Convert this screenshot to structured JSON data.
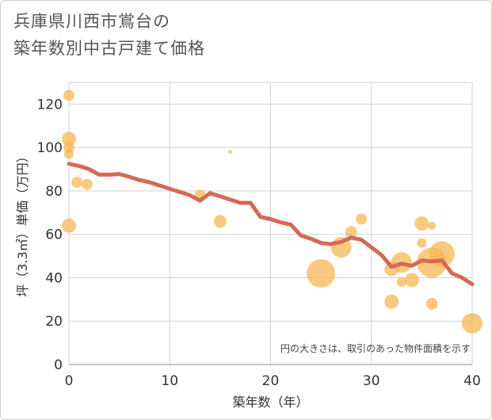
{
  "chart_data": {
    "type": "scatter",
    "title_line1": "兵庫県川西市鴬台の",
    "title_line2": "築年数別中古戸建て価格",
    "xlabel": "築年数（年）",
    "ylabel": "坪（3.3㎡）単価（万円）",
    "xlim": [
      0,
      40
    ],
    "ylim": [
      0,
      130
    ],
    "xticks": [
      0,
      10,
      20,
      30,
      40
    ],
    "yticks": [
      0,
      20,
      40,
      60,
      80,
      100,
      120
    ],
    "note": "円の大きさは、取引のあった物件面積を示す",
    "colors": {
      "bubble": "#f5b54e",
      "line": "#d46a56",
      "grid": "#c9d2dc"
    },
    "bubbles": [
      {
        "x": 0,
        "y": 124,
        "size": 12
      },
      {
        "x": 0,
        "y": 104,
        "size": 16
      },
      {
        "x": 0,
        "y": 100,
        "size": 12
      },
      {
        "x": 0,
        "y": 97,
        "size": 10
      },
      {
        "x": 0,
        "y": 64,
        "size": 16
      },
      {
        "x": 0.8,
        "y": 84,
        "size": 12
      },
      {
        "x": 1.8,
        "y": 83,
        "size": 12
      },
      {
        "x": 13,
        "y": 78,
        "size": 12
      },
      {
        "x": 16,
        "y": 98,
        "size": 3
      },
      {
        "x": 15,
        "y": 66,
        "size": 14
      },
      {
        "x": 25,
        "y": 42,
        "size": 34
      },
      {
        "x": 27,
        "y": 54,
        "size": 24
      },
      {
        "x": 28,
        "y": 61,
        "size": 13
      },
      {
        "x": 29,
        "y": 67,
        "size": 12
      },
      {
        "x": 32,
        "y": 44,
        "size": 16
      },
      {
        "x": 32,
        "y": 29,
        "size": 16
      },
      {
        "x": 33,
        "y": 47,
        "size": 24
      },
      {
        "x": 33,
        "y": 38,
        "size": 10
      },
      {
        "x": 34,
        "y": 39,
        "size": 16
      },
      {
        "x": 35,
        "y": 65,
        "size": 16
      },
      {
        "x": 35,
        "y": 56,
        "size": 10
      },
      {
        "x": 36,
        "y": 64,
        "size": 8
      },
      {
        "x": 36,
        "y": 47,
        "size": 36
      },
      {
        "x": 36,
        "y": 28,
        "size": 13
      },
      {
        "x": 37,
        "y": 51,
        "size": 30
      },
      {
        "x": 40,
        "y": 19,
        "size": 24
      }
    ],
    "line": {
      "x": [
        0,
        1,
        2,
        3,
        4,
        5,
        6,
        7,
        8,
        9,
        10,
        11,
        12,
        13,
        14,
        15,
        16,
        17,
        18,
        19,
        20,
        21,
        22,
        23,
        24,
        25,
        26,
        27,
        28,
        29,
        30,
        31,
        32,
        33,
        34,
        35,
        36,
        37,
        38,
        39,
        40
      ],
      "y": [
        92.5,
        91.5,
        90,
        87.5,
        87.5,
        87.8,
        86.5,
        85,
        84,
        82.5,
        81,
        79.5,
        78,
        75.5,
        79,
        77.5,
        76,
        74.5,
        74.5,
        68,
        67,
        65.5,
        64.5,
        59.5,
        58,
        56,
        55.5,
        56.5,
        58.5,
        57.5,
        54,
        50.5,
        45,
        46.5,
        45.5,
        48,
        47.5,
        48,
        42,
        40,
        37
      ]
    }
  }
}
